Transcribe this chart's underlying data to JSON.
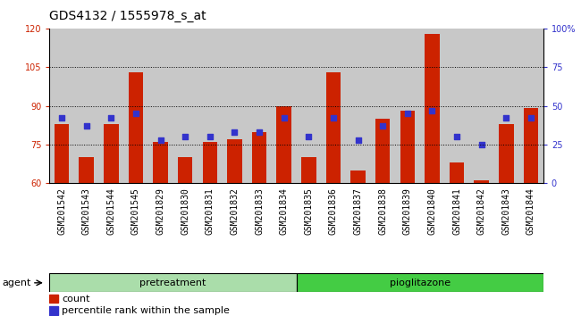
{
  "title": "GDS4132 / 1555978_s_at",
  "samples": [
    "GSM201542",
    "GSM201543",
    "GSM201544",
    "GSM201545",
    "GSM201829",
    "GSM201830",
    "GSM201831",
    "GSM201832",
    "GSM201833",
    "GSM201834",
    "GSM201835",
    "GSM201836",
    "GSM201837",
    "GSM201838",
    "GSM201839",
    "GSM201840",
    "GSM201841",
    "GSM201842",
    "GSM201843",
    "GSM201844"
  ],
  "count_values": [
    83,
    70,
    83,
    103,
    76,
    70,
    76,
    77,
    80,
    90,
    70,
    103,
    65,
    85,
    88,
    118,
    68,
    61,
    83,
    89
  ],
  "percentile_values": [
    42,
    37,
    42,
    45,
    28,
    30,
    30,
    33,
    33,
    42,
    30,
    42,
    28,
    37,
    45,
    47,
    30,
    25,
    42,
    42
  ],
  "pretreatment_count": 10,
  "pioglitazone_count": 10,
  "ylim_left": [
    60,
    120
  ],
  "ylim_right": [
    0,
    100
  ],
  "yticks_left": [
    60,
    75,
    90,
    105,
    120
  ],
  "yticks_right": [
    0,
    25,
    50,
    75,
    100
  ],
  "ytick_labels_right": [
    "0",
    "25",
    "50",
    "75",
    "100%"
  ],
  "hlines": [
    75,
    90,
    105
  ],
  "bar_color": "#cc2200",
  "dot_color": "#3333cc",
  "agent_label": "agent",
  "group1_label": "pretreatment",
  "group2_label": "pioglitazone",
  "legend_count": "count",
  "legend_percentile": "percentile rank within the sample",
  "bar_width": 0.6,
  "col_bg_color": "#c8c8c8",
  "plot_bg": "#ffffff",
  "group1_color": "#aaddaa",
  "group2_color": "#44cc44",
  "title_fontsize": 10,
  "tick_fontsize": 7,
  "label_fontsize": 8
}
